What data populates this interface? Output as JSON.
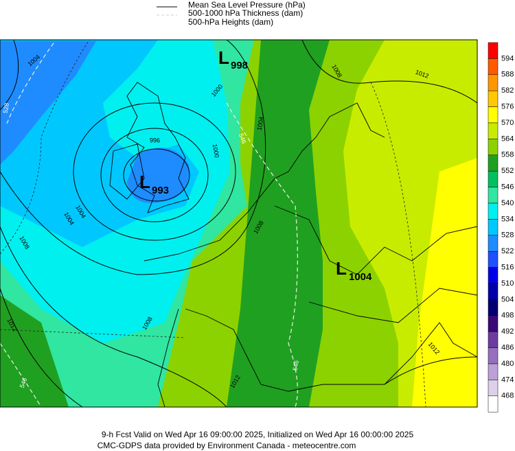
{
  "legend": [
    "Mean Sea Level Pressure (hPa)",
    "500-1000 hPa Thickness (dam)",
    "500-hPa Heights (dam)"
  ],
  "colorbar": {
    "labels": [
      "594",
      "588",
      "582",
      "576",
      "570",
      "564",
      "558",
      "552",
      "546",
      "540",
      "534",
      "528",
      "522",
      "516",
      "510",
      "504",
      "498",
      "492",
      "486",
      "480",
      "474",
      "468"
    ],
    "colors": [
      "#ff0000",
      "#ff5a00",
      "#ff9600",
      "#ffc800",
      "#ffff00",
      "#c8ec00",
      "#8cd200",
      "#20a020",
      "#00c060",
      "#30e6a0",
      "#00f0f0",
      "#00c8ff",
      "#1e8cff",
      "#1e50ff",
      "#0000e6",
      "#0000a8",
      "#000070",
      "#3c0878",
      "#6e3ca0",
      "#9670be",
      "#bca0d6",
      "#ddd0ea",
      "#ffffff"
    ]
  },
  "lows": [
    {
      "letter": "L",
      "value": "998"
    },
    {
      "letter": "L",
      "value": "993"
    },
    {
      "letter": "L",
      "value": "1004"
    }
  ],
  "contour_labels": [
    "1004",
    "1000",
    "1000",
    "996",
    "1004",
    "1008",
    "1012",
    "1008",
    "1012",
    "1012",
    "1008",
    "1004",
    "1008",
    "1012",
    "528",
    "546",
    "546",
    "546",
    "1004"
  ],
  "footer": [
    "9-h Fcst Valid on Wed Apr 16 09:00:00 2025, Initialized on Wed Apr 16 00:00:00 2025",
    "CMC-GDPS data provided by Environment Canada - meteocentre.com"
  ]
}
